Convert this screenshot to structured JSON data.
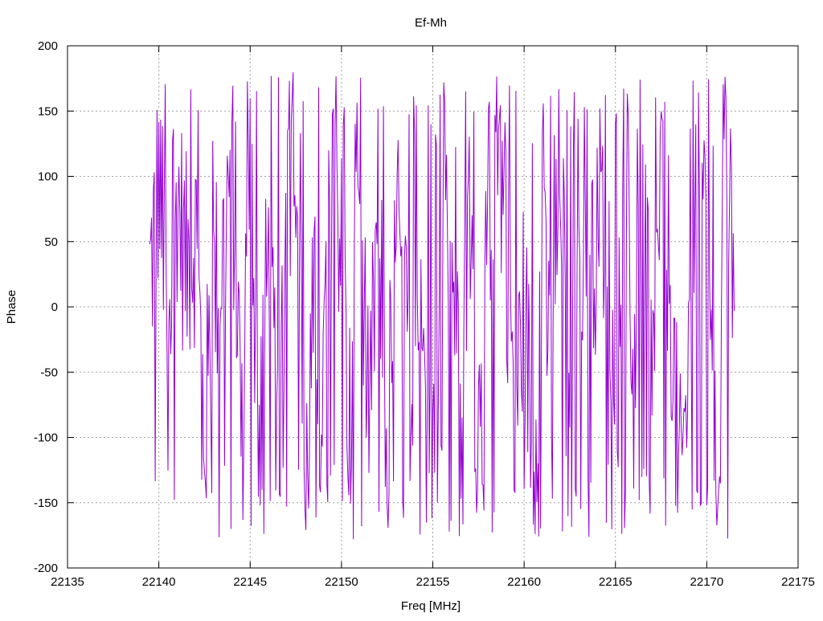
{
  "chart_data": {
    "type": "line",
    "title": "Ef-Mh",
    "xlabel": "Freq [MHz]",
    "ylabel": "Phase",
    "xlim": [
      22135,
      22175
    ],
    "ylim": [
      -200,
      200
    ],
    "xticks": [
      22135,
      22140,
      22145,
      22150,
      22155,
      22160,
      22165,
      22170,
      22175
    ],
    "yticks": [
      -200,
      -150,
      -100,
      -50,
      0,
      50,
      100,
      150,
      200
    ],
    "grid": true,
    "legend": "none",
    "series": [
      {
        "color": "#9400d3",
        "x_range": [
          22139.5,
          22171.5
        ],
        "x_step": 0.05,
        "x": [
          22139.5,
          22140.0,
          22140.5,
          22141.0,
          22141.5,
          22142.0,
          22142.5,
          22143.0,
          22143.5,
          22144.0,
          22144.5,
          22145.0,
          22145.5,
          22146.0,
          22146.5,
          22147.0,
          22147.5,
          22148.0,
          22148.5,
          22149.0,
          22149.5,
          22150.0,
          22150.5,
          22151.0,
          22151.5,
          22152.0,
          22152.5,
          22153.0,
          22153.5,
          22154.0,
          22154.5,
          22155.0,
          22155.5,
          22156.0,
          22156.5,
          22157.0,
          22157.5,
          22158.0,
          22158.5,
          22159.0,
          22159.5,
          22160.0,
          22160.5,
          22161.0,
          22161.5,
          22162.0,
          22162.5,
          22163.0,
          22163.5,
          22164.0,
          22164.5,
          22165.0,
          22165.5,
          22166.0,
          22166.5,
          22167.0,
          22167.5,
          22168.0,
          22168.5,
          22169.0,
          22169.5,
          22170.0,
          22170.5,
          22171.0,
          22171.5
        ],
        "y_mean": [
          20,
          100,
          -60,
          90,
          30,
          60,
          -100,
          10,
          40,
          120,
          -80,
          110,
          -100,
          40,
          -120,
          80,
          140,
          -150,
          0,
          -60,
          150,
          40,
          -100,
          120,
          -110,
          80,
          -100,
          40,
          -20,
          -40,
          60,
          -110,
          -40,
          110,
          -120,
          100,
          -150,
          60,
          150,
          60,
          -90,
          10,
          -120,
          30,
          -60,
          120,
          -150,
          -20,
          110,
          -30,
          120,
          -100,
          130,
          -40,
          140,
          -80,
          100,
          20,
          -150,
          -50,
          120,
          140,
          -120,
          60,
          30
        ]
      }
    ]
  }
}
